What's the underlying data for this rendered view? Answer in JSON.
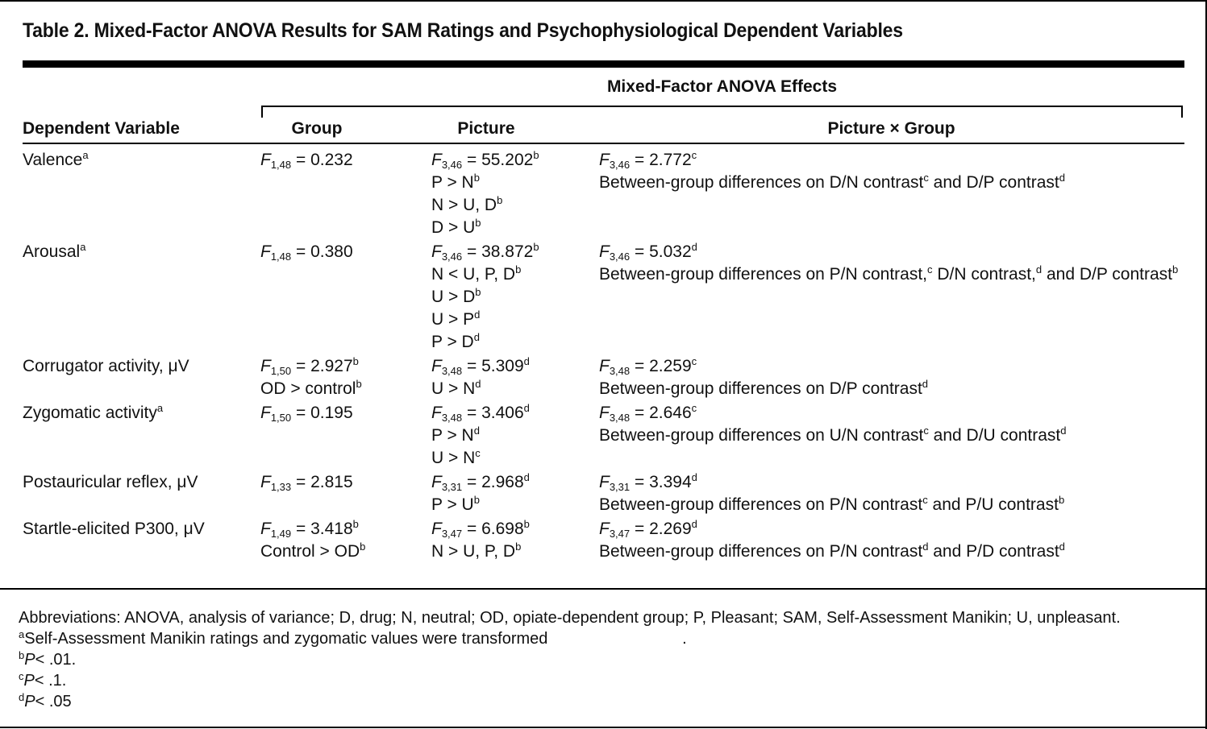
{
  "title": "Table 2. Mixed-Factor ANOVA Results for SAM Ratings and Psychophysiological Dependent Variables",
  "spanner": "Mixed-Factor ANOVA Effects",
  "headers": {
    "dependent_variable": "Dependent Variable",
    "group": "Group",
    "picture": "Picture",
    "picture_x_group": "Picture × Group"
  },
  "rows": [
    {
      "dv": "Valence",
      "dv_sup": "a",
      "group": [
        {
          "f": "F",
          "df": "1,48",
          "val": " = 0.232",
          "sup": ""
        }
      ],
      "picture": [
        {
          "f": "F",
          "df": "3,46",
          "val": " = 55.202",
          "sup": "b"
        },
        {
          "f": "",
          "df": "",
          "val": "P > N",
          "sup": "b"
        },
        {
          "f": "",
          "df": "",
          "val": "N > U, D",
          "sup": "b"
        },
        {
          "f": "",
          "df": "",
          "val": "D > U",
          "sup": "b"
        }
      ],
      "pxg_f": {
        "f": "F",
        "df": "3,46",
        "val": " = 2.772",
        "sup": "c"
      },
      "pxg_text": [
        {
          "t": "Between-group differences on D/N contrast",
          "s": "c"
        },
        {
          "t": " and D/P contrast",
          "s": "d"
        }
      ]
    },
    {
      "dv": "Arousal",
      "dv_sup": "a",
      "group": [
        {
          "f": "F",
          "df": "1,48",
          "val": " = 0.380",
          "sup": ""
        }
      ],
      "picture": [
        {
          "f": "F",
          "df": "3,46",
          "val": " = 38.872",
          "sup": "b"
        },
        {
          "f": "",
          "df": "",
          "val": "N < U, P, D",
          "sup": "b"
        },
        {
          "f": "",
          "df": "",
          "val": "U > D",
          "sup": "b"
        },
        {
          "f": "",
          "df": "",
          "val": "U > P",
          "sup": "d"
        },
        {
          "f": "",
          "df": "",
          "val": "P > D",
          "sup": "d"
        }
      ],
      "pxg_f": {
        "f": "F",
        "df": "3,46",
        "val": " = 5.032",
        "sup": "d"
      },
      "pxg_text": [
        {
          "t": "Between-group differences on P/N contrast,",
          "s": "c"
        },
        {
          "t": " D/N contrast,",
          "s": "d"
        },
        {
          "t": " and D/P contrast",
          "s": "b"
        }
      ]
    },
    {
      "dv": "Corrugator activity, μV",
      "dv_sup": "",
      "group": [
        {
          "f": "F",
          "df": "1,50",
          "val": " = 2.927",
          "sup": "b"
        },
        {
          "f": "",
          "df": "",
          "val": "OD > control",
          "sup": "b"
        }
      ],
      "picture": [
        {
          "f": "F",
          "df": "3,48",
          "val": " = 5.309",
          "sup": "d"
        },
        {
          "f": "",
          "df": "",
          "val": "U > N",
          "sup": "d"
        }
      ],
      "pxg_f": {
        "f": "F",
        "df": "3,48",
        "val": " = 2.259",
        "sup": "c"
      },
      "pxg_text": [
        {
          "t": "Between-group differences on D/P contrast",
          "s": "d"
        }
      ]
    },
    {
      "dv": "Zygomatic activity",
      "dv_sup": "a",
      "group": [
        {
          "f": "F",
          "df": "1,50",
          "val": " = 0.195",
          "sup": ""
        }
      ],
      "picture": [
        {
          "f": "F",
          "df": "3,48",
          "val": " = 3.406",
          "sup": "d"
        },
        {
          "f": "",
          "df": "",
          "val": "P > N",
          "sup": "d"
        },
        {
          "f": "",
          "df": "",
          "val": "U > N",
          "sup": "c"
        }
      ],
      "pxg_f": {
        "f": "F",
        "df": "3,48",
        "val": " = 2.646",
        "sup": "c"
      },
      "pxg_text": [
        {
          "t": "Between-group differences on U/N contrast",
          "s": "c"
        },
        {
          "t": " and D/U contrast",
          "s": "d"
        }
      ]
    },
    {
      "dv": "Postauricular reflex, μV",
      "dv_sup": "",
      "group": [
        {
          "f": "F",
          "df": "1,33",
          "val": " = 2.815",
          "sup": ""
        }
      ],
      "picture": [
        {
          "f": "F",
          "df": "3,31",
          "val": " = 2.968",
          "sup": "d"
        },
        {
          "f": "",
          "df": "",
          "val": "P > U",
          "sup": "b"
        }
      ],
      "pxg_f": {
        "f": "F",
        "df": "3,31",
        "val": " = 3.394",
        "sup": "d"
      },
      "pxg_text": [
        {
          "t": "Between-group differences on P/N contrast",
          "s": "c"
        },
        {
          "t": " and P/U contrast",
          "s": "b"
        }
      ]
    },
    {
      "dv": "Startle-elicited P300, μV",
      "dv_sup": "",
      "group": [
        {
          "f": "F",
          "df": "1,49",
          "val": " = 3.418",
          "sup": "b"
        },
        {
          "f": "",
          "df": "",
          "val": "Control > OD",
          "sup": "b"
        }
      ],
      "picture": [
        {
          "f": "F",
          "df": "3,47",
          "val": " = 6.698",
          "sup": "b"
        },
        {
          "f": "",
          "df": "",
          "val": "N > U, P, D",
          "sup": "b"
        }
      ],
      "pxg_f": {
        "f": "F",
        "df": "3,47",
        "val": " = 2.269",
        "sup": "d"
      },
      "pxg_text": [
        {
          "t": "Between-group differences on P/N contrast",
          "s": "d"
        },
        {
          "t": " and P/D contrast",
          "s": "d"
        }
      ]
    }
  ],
  "footnotes": {
    "abbreviations": "Abbreviations: ANOVA, analysis of variance; D, drug; N, neutral; OD, opiate-dependent group; P, Pleasant; SAM, Self-Assessment Manikin; U, unpleasant.",
    "notes": [
      {
        "mark": "a",
        "text": "Self-Assessment Manikin ratings and zygomatic values were transformed",
        "italic_p": false,
        "tail": "                              ."
      },
      {
        "mark": "b",
        "text": "P",
        "italic_p": true,
        "tail": "< .01."
      },
      {
        "mark": "c",
        "text": "P",
        "italic_p": true,
        "tail": "< .1."
      },
      {
        "mark": "d",
        "text": "P",
        "italic_p": true,
        "tail": "< .05"
      }
    ]
  }
}
